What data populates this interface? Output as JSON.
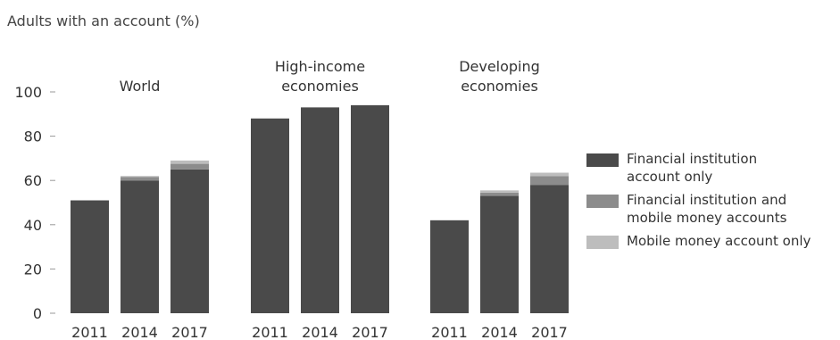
{
  "chart_data": {
    "type": "bar",
    "stacked": true,
    "title": "Adults with an account (%)",
    "ylim": [
      0,
      100
    ],
    "yticks": [
      0,
      20,
      40,
      60,
      80,
      100
    ],
    "groups": [
      {
        "label": "World",
        "categories": [
          "2011",
          "2014",
          "2017"
        ]
      },
      {
        "label": "High-income\neconomies",
        "categories": [
          "2011",
          "2014",
          "2017"
        ]
      },
      {
        "label": "Developing\neconomies",
        "categories": [
          "2011",
          "2014",
          "2017"
        ]
      }
    ],
    "series": [
      {
        "name": "Financial institution\naccount only",
        "color": "#4a4a4a",
        "values": [
          [
            51,
            60,
            65
          ],
          [
            88,
            93,
            94
          ],
          [
            42,
            53,
            58
          ]
        ]
      },
      {
        "name": "Financial institution and\nmobile money accounts",
        "color": "#8c8c8c",
        "values": [
          [
            0,
            1.5,
            2.5
          ],
          [
            0,
            0,
            0
          ],
          [
            0,
            1.5,
            4
          ]
        ]
      },
      {
        "name": "Mobile money account only",
        "color": "#bdbdbd",
        "values": [
          [
            0,
            0.5,
            1.5
          ],
          [
            0,
            0,
            0
          ],
          [
            0,
            1,
            1.5
          ]
        ]
      }
    ],
    "legend_position": "right",
    "grid": false
  }
}
